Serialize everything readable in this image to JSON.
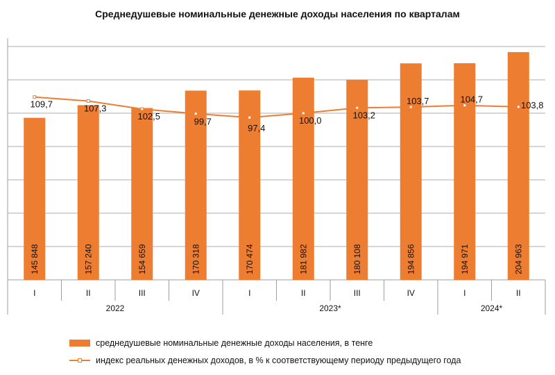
{
  "chart_data": {
    "type": "bar",
    "title": "Среднедушевые номинальные денежные доходы населения по кварталам",
    "categories": [
      "I",
      "II",
      "III",
      "IV",
      "I",
      "II",
      "III",
      "IV",
      "I",
      "II"
    ],
    "years": [
      {
        "label": "2022",
        "quarters": 4
      },
      {
        "label": "2023*",
        "quarters": 4
      },
      {
        "label": "2024*",
        "quarters": 2
      }
    ],
    "series": [
      {
        "name": "среднедушевые номинальные денежные доходы населения,  в тенге",
        "type": "bar",
        "color": "#ED7D31",
        "values": [
          145848,
          157240,
          154659,
          170318,
          170474,
          181982,
          180108,
          194856,
          194971,
          204963
        ],
        "labels": [
          "145 848",
          "157 240",
          "154 659",
          "170 318",
          "170 474",
          "181 982",
          "180 108",
          "194 856",
          "194 971",
          "204 963"
        ]
      },
      {
        "name": "индекс реальных денежных доходов, в % к соответствующему периоду предыдущего года",
        "type": "line",
        "color": "#ED7D31",
        "values": [
          109.7,
          107.3,
          102.5,
          99.7,
          97.4,
          100.0,
          103.2,
          103.7,
          104.7,
          103.8
        ],
        "labels": [
          "109,7",
          "107,3",
          "102,5",
          "99,7",
          "97,4",
          "100,0",
          "103,2",
          "103,7",
          "104,7",
          "103,8"
        ]
      }
    ],
    "ylim": [
      0,
      210000
    ],
    "y_step": 30000,
    "y2lim": [
      0,
      140
    ],
    "grid": true,
    "legend_position": "bottom"
  }
}
